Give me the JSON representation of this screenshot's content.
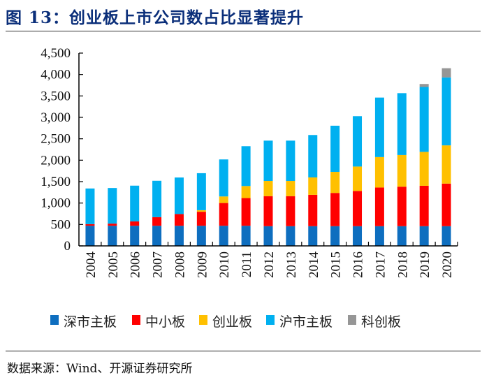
{
  "title": "图 13：创业板上市公司数占比显著提升",
  "source": "数据来源：Wind、开源证券研究所",
  "chart_data": {
    "type": "bar",
    "stacked": true,
    "title": "",
    "xlabel": "",
    "ylabel": "",
    "ylim": [
      0,
      4500
    ],
    "yticks": [
      "0",
      "500",
      "1,000",
      "1,500",
      "2,000",
      "2,500",
      "3,000",
      "3,500",
      "4,000",
      "4,500"
    ],
    "grid": false,
    "legend_position": "bottom",
    "categories": [
      "2004",
      "2005",
      "2006",
      "2007",
      "2008",
      "2009",
      "2010",
      "2011",
      "2012",
      "2013",
      "2014",
      "2015",
      "2016",
      "2017",
      "2018",
      "2019",
      "2020"
    ],
    "series": [
      {
        "name": "深市主板",
        "color": "#0e6ebf",
        "values": [
          470,
          470,
          470,
          470,
          470,
          470,
          470,
          470,
          460,
          460,
          460,
          460,
          460,
          460,
          460,
          460,
          460
        ]
      },
      {
        "name": "中小板",
        "color": "#ff0000",
        "values": [
          38,
          50,
          102,
          202,
          273,
          327,
          531,
          646,
          701,
          701,
          732,
          776,
          822,
          903,
          922,
          943,
          994
        ]
      },
      {
        "name": "创业板",
        "color": "#ffc000",
        "values": [
          0,
          0,
          0,
          0,
          0,
          36,
          153,
          281,
          355,
          355,
          406,
          492,
          570,
          710,
          739,
          791,
          892
        ]
      },
      {
        "name": "沪市主板",
        "color": "#00b0f0",
        "values": [
          832,
          831,
          834,
          848,
          853,
          864,
          864,
          930,
          941,
          941,
          990,
          1077,
          1176,
          1389,
          1444,
          1515,
          1586
        ]
      },
      {
        "name": "科创板",
        "color": "#969696",
        "values": [
          0,
          0,
          0,
          0,
          0,
          0,
          0,
          0,
          0,
          0,
          0,
          0,
          0,
          0,
          0,
          70,
          215
        ]
      }
    ]
  }
}
